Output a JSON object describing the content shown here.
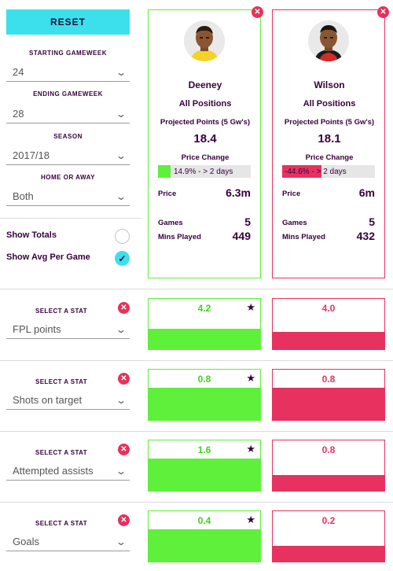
{
  "controls": {
    "reset_label": "RESET",
    "starting_gw_label": "STARTING GAMEWEEK",
    "starting_gw_value": "24",
    "ending_gw_label": "ENDING GAMEWEEK",
    "ending_gw_value": "28",
    "season_label": "SEASON",
    "season_value": "2017/18",
    "home_away_label": "HOME OR AWAY",
    "home_away_value": "Both",
    "show_totals_label": "Show Totals",
    "show_totals_checked": false,
    "show_avg_label": "Show Avg Per Game",
    "show_avg_checked": true
  },
  "players": [
    {
      "name": "Deeney",
      "position": "All Positions",
      "projected_label": "Projected Points (5 Gw's)",
      "projected_value": "18.4",
      "price_change_label": "Price Change",
      "price_change_text": "14.9% - > 2 days",
      "price_change_pct": 14.9,
      "price_label": "Price",
      "price_value": "6.3m",
      "games_label": "Games",
      "games_value": "5",
      "mins_label": "Mins Played",
      "mins_value": "449",
      "color": "#5ef03a",
      "shirt_color": "#f3d32a"
    },
    {
      "name": "Wilson",
      "position": "All Positions",
      "projected_label": "Projected Points (5 Gw's)",
      "projected_value": "18.1",
      "price_change_label": "Price Change",
      "price_change_text": "-44.6% - > 2 days",
      "price_change_pct": -44.6,
      "price_label": "Price",
      "price_value": "6m",
      "games_label": "Games",
      "games_value": "5",
      "mins_label": "Mins Played",
      "mins_value": "432",
      "color": "#e7325f",
      "shirt_color": "#d62a2a"
    }
  ],
  "stats": [
    {
      "label": "SELECT A STAT",
      "selected": "FPL points",
      "p1": "4.2",
      "p2": "4.0",
      "p1_fill": 0.4,
      "p2_fill": 0.33,
      "winner": "p1"
    },
    {
      "label": "SELECT A STAT",
      "selected": "Shots on target",
      "p1": "0.8",
      "p2": "0.8",
      "p1_fill": 0.62,
      "p2_fill": 0.62,
      "winner": "p1"
    },
    {
      "label": "SELECT A STAT",
      "selected": "Attempted assists",
      "p1": "1.6",
      "p2": "0.8",
      "p1_fill": 0.62,
      "p2_fill": 0.3,
      "winner": "p1"
    },
    {
      "label": "SELECT A STAT",
      "selected": "Goals",
      "p1": "0.4",
      "p2": "0.2",
      "p1_fill": 0.62,
      "p2_fill": 0.3,
      "winner": "p1"
    }
  ],
  "icons": {
    "chevron": "chevron-down-icon",
    "close": "close-icon",
    "star": "star-icon",
    "check": "check-icon"
  },
  "colors": {
    "accent": "#3be0ec",
    "player1": "#5ef03a",
    "player2": "#e7325f",
    "text": "#37003c"
  }
}
